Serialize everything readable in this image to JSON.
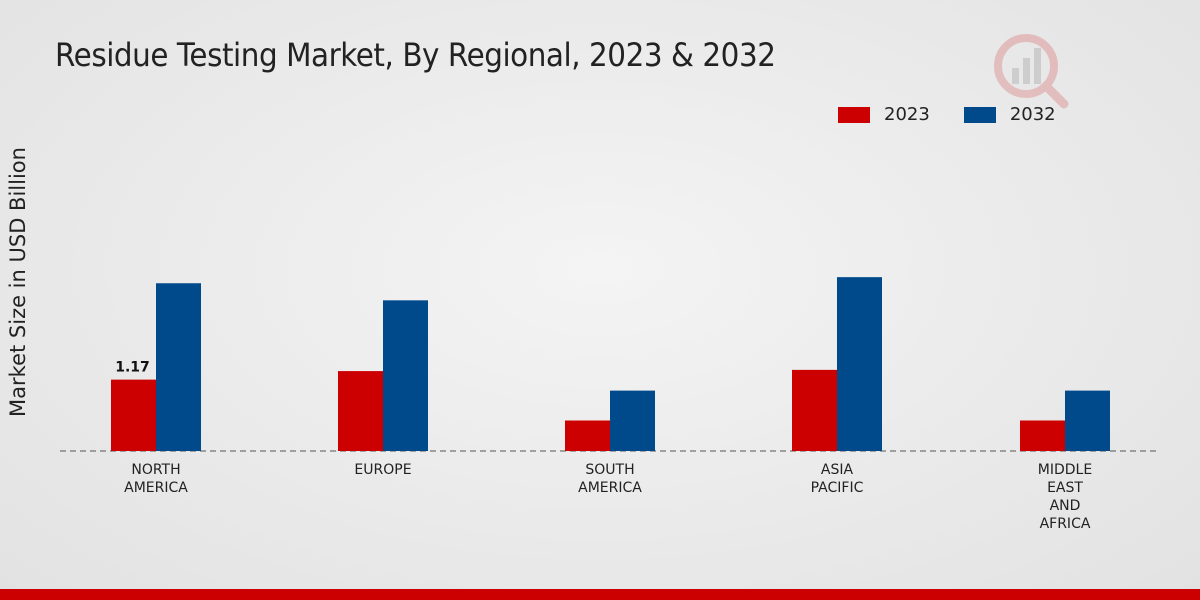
{
  "chart_data": {
    "type": "bar",
    "title": "Residue Testing Market, By Regional, 2023 & 2032",
    "xlabel": "",
    "ylabel": "Market Size in USD Billion",
    "categories": [
      "NORTH\nAMERICA",
      "EUROPE",
      "SOUTH\nAMERICA",
      "ASIA\nPACIFIC",
      "MIDDLE\nEAST\nAND\nAFRICA"
    ],
    "series": [
      {
        "name": "2023",
        "color": "#cc0000",
        "values": [
          1.17,
          1.31,
          0.5,
          1.33,
          0.5
        ]
      },
      {
        "name": "2032",
        "color": "#004a8c",
        "values": [
          2.75,
          2.47,
          0.99,
          2.85,
          0.99
        ]
      }
    ],
    "data_labels": [
      {
        "series": 0,
        "index": 0,
        "text": "1.17"
      }
    ],
    "ylim": [
      0,
      6.0
    ],
    "grid": false,
    "legend_position": "top-right"
  }
}
